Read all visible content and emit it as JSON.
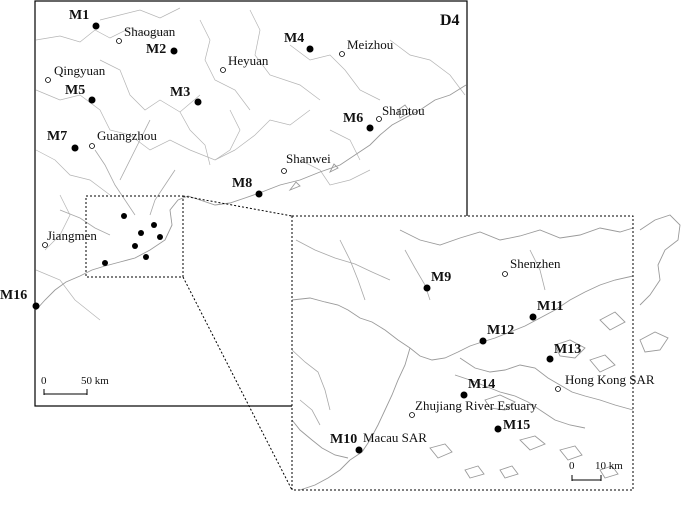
{
  "main_panel": {
    "label": "D4",
    "scale": {
      "zero": "0",
      "value": "50 km"
    }
  },
  "inset_panel": {
    "scale": {
      "zero": "0",
      "value": "10 km"
    }
  },
  "cities": {
    "shaoguan": "Shaoguan",
    "heyuan": "Heyuan",
    "meizhou": "Meizhou",
    "qingyuan": "Qingyuan",
    "guangzhou": "Guangzhou",
    "shantou": "Shantou",
    "shanwei": "Shanwei",
    "jiangmen": "Jiangmen",
    "shenzhen": "Shenzhen",
    "hongkong": "Hong Kong SAR",
    "estuary": "Zhujiang River Estuary",
    "macau": "Macau SAR"
  },
  "sites": {
    "m1": "M1",
    "m2": "M2",
    "m3": "M3",
    "m4": "M4",
    "m5": "M5",
    "m6": "M6",
    "m7": "M7",
    "m8": "M8",
    "m9": "M9",
    "m10": "M10",
    "m11": "M11",
    "m12": "M12",
    "m13": "M13",
    "m14": "M14",
    "m15": "M15",
    "m16": "M16"
  }
}
